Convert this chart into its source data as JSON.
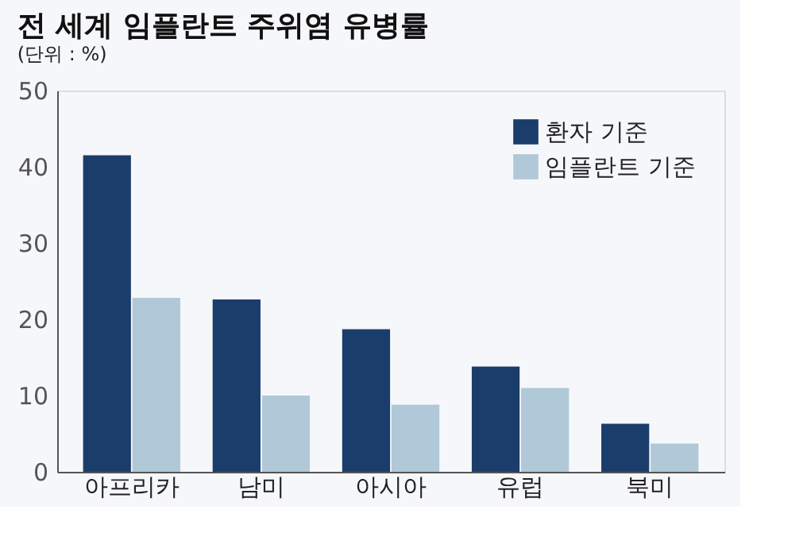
{
  "chart_data": {
    "type": "bar",
    "title": "전 세계 임플란트 주위염 유병률",
    "subtitle": "(단위 : %)",
    "categories": [
      "아프리카",
      "남미",
      "아시아",
      "유럽",
      "북미"
    ],
    "series": [
      {
        "name": "환자 기준",
        "color": "#1b3d6b",
        "values": [
          41.5,
          22.6,
          18.7,
          13.8,
          6.3
        ]
      },
      {
        "name": "임플란트 기준",
        "color": "#b0c8d8",
        "values": [
          22.8,
          10.0,
          8.8,
          11.0,
          3.7
        ]
      }
    ],
    "ylim": [
      0,
      50
    ],
    "yticks": [
      0,
      10,
      20,
      30,
      40,
      50
    ],
    "grid": false,
    "legend": "top right"
  }
}
